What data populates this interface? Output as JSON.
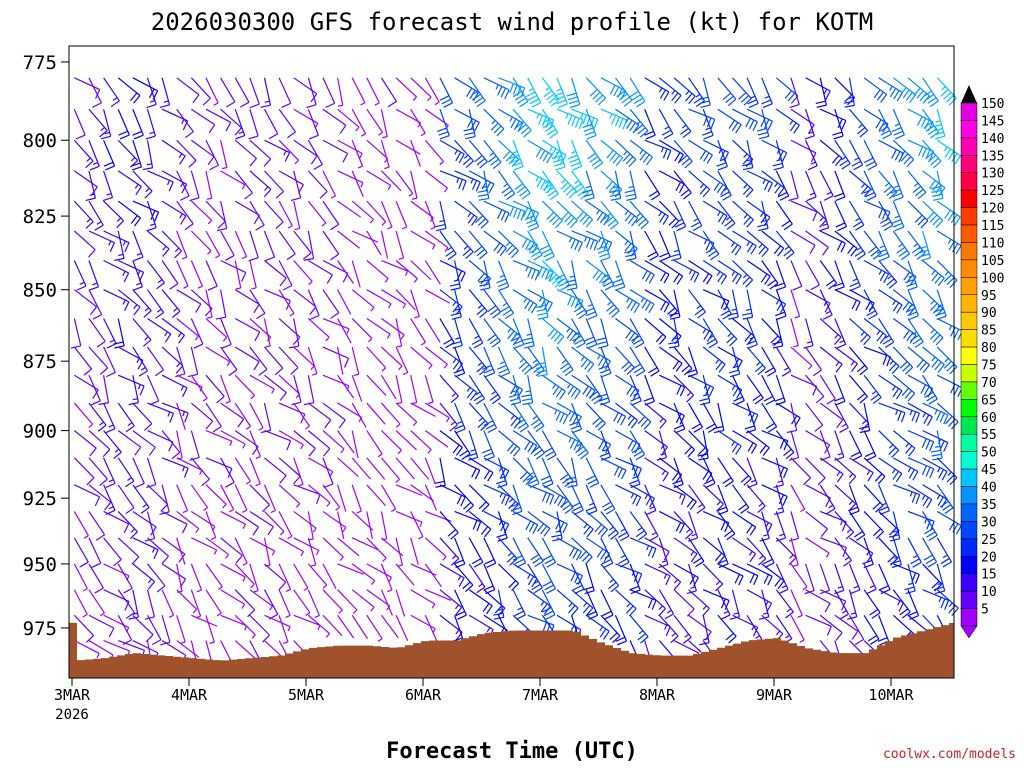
{
  "chart_data": {
    "type": "wind-profile",
    "title": "2026030300 GFS forecast wind profile (kt) for KOTM",
    "xlabel": "Forecast Time (UTC)",
    "ylabel": "",
    "credit": "coolwx.com/models",
    "x_ticks": [
      "3MAR",
      "4MAR",
      "5MAR",
      "6MAR",
      "7MAR",
      "8MAR",
      "9MAR",
      "10MAR"
    ],
    "x_subtitle": "2026",
    "y_ticks": [
      775,
      800,
      825,
      850,
      875,
      900,
      925,
      950,
      975
    ],
    "ylim": [
      995,
      770
    ],
    "levels": [
      780,
      790,
      800,
      810,
      820,
      830,
      840,
      850,
      860,
      870,
      880,
      890,
      900,
      910,
      920,
      930,
      940,
      950,
      960,
      970,
      980
    ],
    "colorbar_labels": [
      150,
      145,
      140,
      135,
      130,
      125,
      120,
      115,
      110,
      105,
      100,
      95,
      90,
      85,
      80,
      75,
      70,
      65,
      60,
      55,
      50,
      45,
      40,
      35,
      30,
      25,
      20,
      15,
      10,
      5
    ],
    "colorbar_colors": [
      "#e400e4",
      "#ff00e4",
      "#ff00b4",
      "#ff0078",
      "#ff0046",
      "#ff0000",
      "#ff3c00",
      "#ff5a00",
      "#ff7800",
      "#ff8c00",
      "#ffa000",
      "#ffb400",
      "#ffc800",
      "#ffdc00",
      "#ffff00",
      "#c8ff00",
      "#64ff00",
      "#00ff00",
      "#00e650",
      "#00ffa0",
      "#00ffd2",
      "#00c8ff",
      "#0096ff",
      "#0064ff",
      "#0046ff",
      "#0028ff",
      "#0000ff",
      "#3c00ff",
      "#6400ff",
      "#a000ff"
    ],
    "surface_pressure": {
      "days": [
        3.0,
        3.25,
        3.5,
        3.75,
        4.0,
        4.25,
        4.5,
        4.75,
        5.0,
        5.25,
        5.5,
        5.75,
        6.0,
        6.25,
        6.5,
        6.75,
        7.0,
        7.25,
        7.5,
        7.75,
        8.0,
        8.25,
        8.5,
        8.75,
        9.0,
        9.25,
        9.5,
        9.75,
        10.0,
        10.25,
        10.5
      ],
      "hpa": [
        988,
        987,
        985,
        986,
        987,
        988,
        987,
        986,
        983,
        982,
        982,
        983,
        980,
        980,
        977,
        976,
        976,
        976,
        981,
        985,
        986,
        986,
        983,
        980,
        979,
        983,
        985,
        985,
        979,
        976,
        973
      ]
    },
    "wind_speed_kt": {
      "segments": [
        {
          "from": 3.0,
          "to": 3.8,
          "speed": [
            15,
            22,
            18
          ]
        },
        {
          "from": 3.8,
          "to": 5.2,
          "speed": [
            10,
            14,
            12
          ]
        },
        {
          "from": 5.2,
          "to": 6.1,
          "speed": [
            6,
            8,
            7
          ]
        },
        {
          "from": 6.1,
          "to": 7.8,
          "speed": [
            28,
            50,
            40
          ]
        },
        {
          "from": 7.8,
          "to": 9.1,
          "speed": [
            25,
            32,
            28
          ]
        },
        {
          "from": 9.1,
          "to": 10.5,
          "speed": [
            12,
            35,
            48
          ]
        }
      ]
    }
  }
}
